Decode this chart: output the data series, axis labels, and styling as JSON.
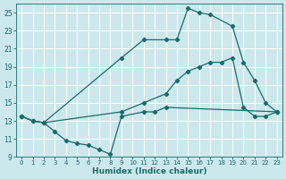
{
  "xlabel": "Humidex (Indice chaleur)",
  "bg_color": "#cce8ec",
  "grid_color": "#ffffff",
  "line_color": "#1a6b6b",
  "xlim": [
    -0.5,
    23.5
  ],
  "ylim": [
    9,
    26
  ],
  "xticks": [
    0,
    1,
    2,
    3,
    4,
    5,
    6,
    7,
    8,
    9,
    10,
    11,
    12,
    13,
    14,
    15,
    16,
    17,
    18,
    19,
    20,
    21,
    22,
    23
  ],
  "yticks": [
    9,
    11,
    13,
    15,
    17,
    19,
    21,
    23,
    25
  ],
  "line1_x": [
    0,
    1,
    2,
    9,
    11,
    13,
    14,
    15,
    16,
    17,
    19,
    20,
    21,
    22,
    23
  ],
  "line1_y": [
    13.5,
    13.0,
    12.8,
    20.0,
    22.0,
    22.0,
    22.0,
    25.5,
    25.0,
    24.8,
    23.5,
    19.5,
    17.5,
    15.0,
    14.0
  ],
  "line2_x": [
    0,
    1,
    2,
    9,
    11,
    13,
    14,
    15,
    16,
    17,
    18,
    19,
    20,
    21,
    22,
    23
  ],
  "line2_y": [
    13.5,
    13.0,
    12.8,
    14.0,
    15.0,
    16.0,
    17.5,
    18.5,
    19.0,
    19.5,
    19.5,
    20.0,
    14.5,
    13.5,
    13.5,
    14.0
  ],
  "line3_x": [
    0,
    1,
    2,
    3,
    4,
    5,
    6,
    7,
    8,
    9,
    11,
    12,
    13,
    23
  ],
  "line3_y": [
    13.5,
    13.0,
    12.8,
    11.8,
    10.8,
    10.5,
    10.3,
    9.8,
    9.3,
    13.5,
    14.0,
    14.0,
    14.5,
    14.0
  ]
}
